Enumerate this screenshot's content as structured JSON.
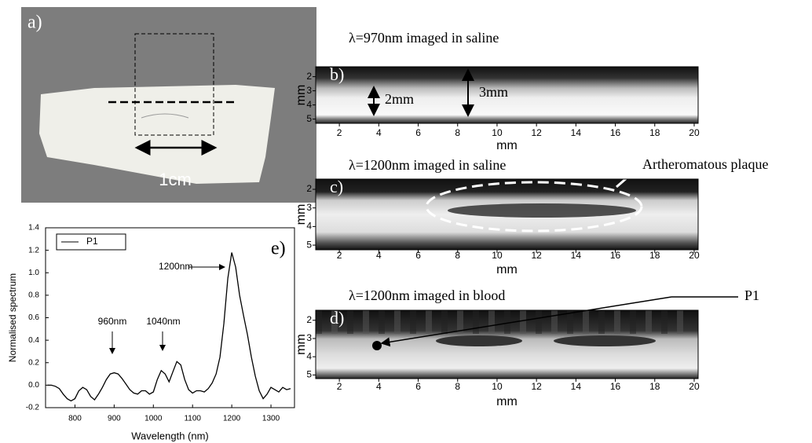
{
  "panels": {
    "a": {
      "label": "a)",
      "scale": "1cm"
    },
    "b": {
      "label": "b)",
      "title": "λ=970nm imaged in saline",
      "xlabel": "mm",
      "ylabel": "mm",
      "xlim": [
        0.8,
        20.2
      ],
      "ylim": [
        1.3,
        5.3
      ],
      "xticks": [
        2,
        4,
        6,
        8,
        10,
        12,
        14,
        16,
        18,
        20
      ],
      "yticks": [
        2,
        3,
        4,
        5
      ],
      "annotations": [
        "2mm",
        "3mm"
      ]
    },
    "c": {
      "label": "c)",
      "title": "λ=1200nm imaged in saline",
      "xlabel": "mm",
      "ylabel": "mm",
      "xlim": [
        0.8,
        20.2
      ],
      "ylim": [
        1.45,
        5.25
      ],
      "xticks": [
        2,
        4,
        6,
        8,
        10,
        12,
        14,
        16,
        18,
        20
      ],
      "yticks": [
        2,
        3,
        4,
        5
      ],
      "annotations": [
        "Artheromatous plaque"
      ]
    },
    "d": {
      "label": "d)",
      "title": "λ=1200nm imaged in blood",
      "xlabel": "mm",
      "ylabel": "mm",
      "xlim": [
        0.8,
        20.2
      ],
      "ylim": [
        1.45,
        5.2
      ],
      "xticks": [
        2,
        4,
        6,
        8,
        10,
        12,
        14,
        16,
        18,
        20
      ],
      "yticks": [
        2,
        3,
        4,
        5
      ],
      "annotations": [
        "P1"
      ]
    }
  },
  "chart_data": {
    "type": "line",
    "label": "e)",
    "xlabel": "Wavelength (nm)",
    "ylabel": "Normalised spectrum",
    "x": [
      730,
      740,
      750,
      760,
      770,
      780,
      790,
      800,
      810,
      820,
      830,
      840,
      850,
      860,
      870,
      880,
      890,
      900,
      910,
      920,
      930,
      940,
      950,
      960,
      970,
      980,
      990,
      1000,
      1010,
      1020,
      1030,
      1040,
      1050,
      1060,
      1070,
      1080,
      1090,
      1100,
      1110,
      1120,
      1130,
      1140,
      1150,
      1160,
      1170,
      1180,
      1190,
      1200,
      1210,
      1220,
      1230,
      1240,
      1250,
      1260,
      1270,
      1280,
      1290,
      1300,
      1310,
      1320,
      1330,
      1340,
      1350
    ],
    "series": [
      {
        "name": "P1",
        "color": "#000000",
        "values": [
          0.0,
          0.0,
          -0.01,
          -0.03,
          -0.08,
          -0.12,
          -0.14,
          -0.12,
          -0.05,
          -0.02,
          -0.04,
          -0.1,
          -0.13,
          -0.08,
          -0.02,
          0.05,
          0.1,
          0.11,
          0.1,
          0.06,
          0.01,
          -0.04,
          -0.07,
          -0.08,
          -0.05,
          -0.05,
          -0.08,
          -0.06,
          0.05,
          0.13,
          0.1,
          0.03,
          0.12,
          0.21,
          0.18,
          0.05,
          -0.04,
          -0.07,
          -0.05,
          -0.05,
          -0.06,
          -0.03,
          0.02,
          0.1,
          0.25,
          0.55,
          0.95,
          1.18,
          1.05,
          0.8,
          0.62,
          0.45,
          0.25,
          0.08,
          -0.05,
          -0.12,
          -0.08,
          -0.02,
          -0.04,
          -0.06,
          -0.02,
          -0.04,
          -0.03
        ]
      }
    ],
    "xlim": [
      725,
      1360
    ],
    "ylim": [
      -0.2,
      1.4
    ],
    "xticks": [
      800,
      900,
      1000,
      1100,
      1200,
      1300
    ],
    "yticks": [
      -0.2,
      {
        "value": 0,
        "label": "0.0"
      },
      0.2,
      0.4,
      0.6,
      0.8,
      {
        "value": 1,
        "label": "1.0"
      },
      1.2,
      1.4
    ],
    "annotations": [
      "1200nm",
      "960nm",
      "1040nm"
    ],
    "legend": "upper left"
  }
}
